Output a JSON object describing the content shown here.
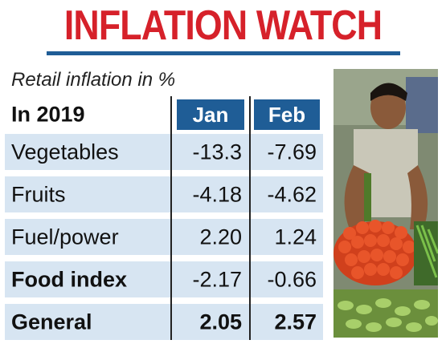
{
  "title": "INFLATION WATCH",
  "subtitle": "Retail inflation in %",
  "table": {
    "corner_label": "In 2019",
    "columns": [
      "Jan",
      "Feb"
    ],
    "rows": [
      {
        "label": "Vegetables",
        "jan": "-13.3",
        "feb": "-7.69"
      },
      {
        "label": "Fruits",
        "jan": "-4.18",
        "feb": "-4.62"
      },
      {
        "label": "Fuel/power",
        "jan": "2.20",
        "feb": "1.24"
      },
      {
        "label": "Food index",
        "jan": "-2.17",
        "feb": "-0.66"
      },
      {
        "label": "General",
        "jan": "2.05",
        "feb": "2.57"
      }
    ]
  },
  "colors": {
    "title": "#d6212a",
    "header": "#1f5d96",
    "row_shade": "#d7e5f2"
  }
}
